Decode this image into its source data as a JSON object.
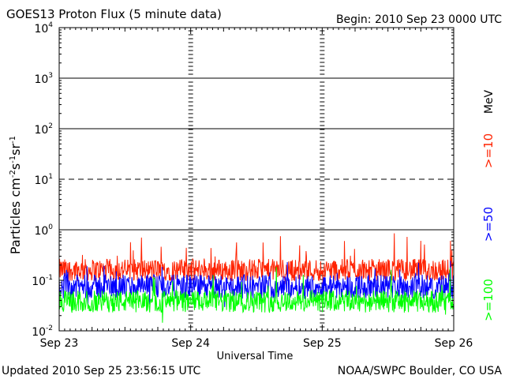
{
  "chart_data": {
    "type": "line",
    "title": "GOES13 Proton Flux (5 minute data)",
    "begin": "Begin: 2010 Sep 23 0000 UTC",
    "xlabel": "Universal Time",
    "ylabel": "Particles cm⁻²s⁻¹sr⁻¹",
    "ylabel_parts": {
      "base": "Particles cm",
      "e1": "-2",
      "s": "s",
      "e2": "-1",
      "sr": "sr",
      "e3": "-1"
    },
    "yscale": "log",
    "ylim": [
      0.01,
      10000
    ],
    "xlim_days": [
      0,
      3
    ],
    "x_ticks": [
      "Sep 23",
      "Sep 24",
      "Sep 25",
      "Sep 26"
    ],
    "y_ticks": [
      {
        "base": "10",
        "exp": "-2",
        "value": 0.01
      },
      {
        "base": "10",
        "exp": "-1",
        "value": 0.1
      },
      {
        "base": "10",
        "exp": "0",
        "value": 1
      },
      {
        "base": "10",
        "exp": "1",
        "value": 10
      },
      {
        "base": "10",
        "exp": "2",
        "value": 100
      },
      {
        "base": "10",
        "exp": "3",
        "value": 1000
      },
      {
        "base": "10",
        "exp": "4",
        "value": 10000
      }
    ],
    "grid": {
      "solid_y": [
        1,
        100,
        1000
      ],
      "dashed_y": [
        10
      ]
    },
    "series": [
      {
        "name": ">=10",
        "color": "#ff2200",
        "center": 0.16,
        "amp": 0.22,
        "spike": 0.6
      },
      {
        "name": ">=50",
        "color": "#0000ff",
        "center": 0.075,
        "amp": 0.24,
        "spike": 0.45
      },
      {
        "name": ">=100",
        "color": "#00ff00",
        "center": 0.038,
        "amp": 0.22,
        "spike": 0.5
      }
    ],
    "unit_label": "MeV"
  },
  "footer": {
    "updated": "Updated 2010 Sep 25 23:56:15 UTC",
    "credit": "NOAA/SWPC Boulder, CO USA"
  }
}
